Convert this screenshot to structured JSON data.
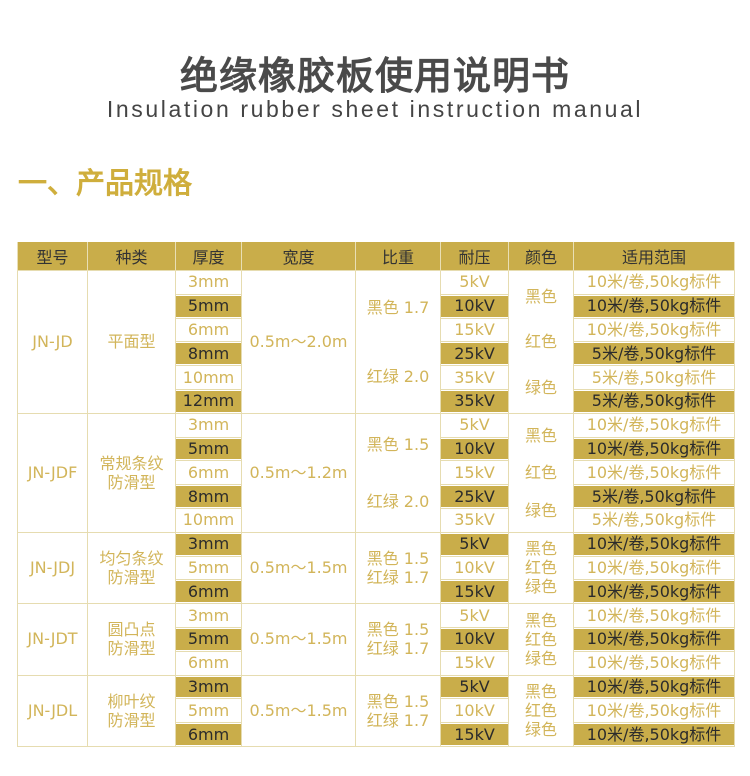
{
  "header": {
    "title": "绝缘橡胶板使用说明书",
    "subtitle": "Insulation rubber sheet instruction manual"
  },
  "section": {
    "title": "一、产品规格"
  },
  "colors": {
    "gold": "#c9ad4a",
    "gold_text": "#d2b55a",
    "title_text": "#4a4a4a"
  },
  "table": {
    "columns": [
      "型号",
      "种类",
      "厚度",
      "宽度",
      "比重",
      "耐压",
      "颜色",
      "适用范围"
    ],
    "groups": [
      {
        "model": "JN-JD",
        "type": [
          "平面型"
        ],
        "width": "0.5m～2.0m",
        "density": [
          "黑色 1.7",
          "红绿 2.0"
        ],
        "colors": [
          "黑色",
          "红色",
          "绿色"
        ],
        "rows": [
          {
            "thickness": "3mm",
            "voltage": "5kV",
            "range": "10米/卷,50kg标件",
            "highlight": false
          },
          {
            "thickness": "5mm",
            "voltage": "10kV",
            "range": "10米/卷,50kg标件",
            "highlight": true
          },
          {
            "thickness": "6mm",
            "voltage": "15kV",
            "range": "10米/卷,50kg标件",
            "highlight": false
          },
          {
            "thickness": "8mm",
            "voltage": "25kV",
            "range": "5米/卷,50kg标件",
            "highlight": true
          },
          {
            "thickness": "10mm",
            "voltage": "35kV",
            "range": "5米/卷,50kg标件",
            "highlight": false
          },
          {
            "thickness": "12mm",
            "voltage": "35kV",
            "range": "5米/卷,50kg标件",
            "highlight": true
          }
        ]
      },
      {
        "model": "JN-JDF",
        "type": [
          "常规条纹",
          "防滑型"
        ],
        "width": "0.5m～1.2m",
        "density": [
          "黑色 1.5",
          "红绿 2.0"
        ],
        "colors": [
          "黑色",
          "红色",
          "绿色"
        ],
        "rows": [
          {
            "thickness": "3mm",
            "voltage": "5kV",
            "range": "10米/卷,50kg标件",
            "highlight": false
          },
          {
            "thickness": "5mm",
            "voltage": "10kV",
            "range": "10米/卷,50kg标件",
            "highlight": true
          },
          {
            "thickness": "6mm",
            "voltage": "15kV",
            "range": "10米/卷,50kg标件",
            "highlight": false
          },
          {
            "thickness": "8mm",
            "voltage": "25kV",
            "range": "5米/卷,50kg标件",
            "highlight": true
          },
          {
            "thickness": "10mm",
            "voltage": "35kV",
            "range": "5米/卷,50kg标件",
            "highlight": false
          }
        ]
      },
      {
        "model": "JN-JDJ",
        "type": [
          "均匀条纹",
          "防滑型"
        ],
        "width": "0.5m～1.5m",
        "density": [
          "黑色 1.5",
          "红绿 1.7"
        ],
        "colors": [
          "黑色",
          "红色",
          "绿色"
        ],
        "rows": [
          {
            "thickness": "3mm",
            "voltage": "5kV",
            "range": "10米/卷,50kg标件",
            "highlight": true
          },
          {
            "thickness": "5mm",
            "voltage": "10kV",
            "range": "10米/卷,50kg标件",
            "highlight": false
          },
          {
            "thickness": "6mm",
            "voltage": "15kV",
            "range": "10米/卷,50kg标件",
            "highlight": true
          }
        ]
      },
      {
        "model": "JN-JDT",
        "type": [
          "圆凸点",
          "防滑型"
        ],
        "width": "0.5m～1.5m",
        "density": [
          "黑色 1.5",
          "红绿 1.7"
        ],
        "colors": [
          "黑色",
          "红色",
          "绿色"
        ],
        "rows": [
          {
            "thickness": "3mm",
            "voltage": "5kV",
            "range": "10米/卷,50kg标件",
            "highlight": false
          },
          {
            "thickness": "5mm",
            "voltage": "10kV",
            "range": "10米/卷,50kg标件",
            "highlight": true
          },
          {
            "thickness": "6mm",
            "voltage": "15kV",
            "range": "10米/卷,50kg标件",
            "highlight": false
          }
        ]
      },
      {
        "model": "JN-JDL",
        "type": [
          "柳叶纹",
          "防滑型"
        ],
        "width": "0.5m～1.5m",
        "density": [
          "黑色 1.5",
          "红绿 1.7"
        ],
        "colors": [
          "黑色",
          "红色",
          "绿色"
        ],
        "rows": [
          {
            "thickness": "3mm",
            "voltage": "5kV",
            "range": "10米/卷,50kg标件",
            "highlight": true
          },
          {
            "thickness": "5mm",
            "voltage": "10kV",
            "range": "10米/卷,50kg标件",
            "highlight": false
          },
          {
            "thickness": "6mm",
            "voltage": "15kV",
            "range": "10米/卷,50kg标件",
            "highlight": true
          }
        ]
      }
    ]
  }
}
